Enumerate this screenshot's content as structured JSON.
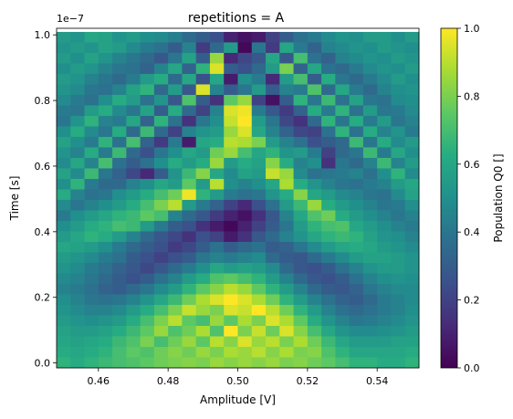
{
  "chart_data": {
    "type": "heatmap",
    "title": "repetitions = A",
    "xlabel": "Amplitude [V]",
    "ylabel": "Time [s]",
    "y_offset_label": "1e−7",
    "colorbar_label": "Population Q0 []",
    "colormap": "viridis",
    "x_range": [
      0.448,
      0.552
    ],
    "y_range": [
      -1.5e-09,
      1.02e-07
    ],
    "xticks": [
      0.46,
      0.48,
      0.5,
      0.52,
      0.54
    ],
    "xtick_labels": [
      "0.46",
      "0.48",
      "0.50",
      "0.52",
      "0.54"
    ],
    "yticks": [
      0.0,
      2e-08,
      4e-08,
      6e-08,
      8e-08,
      1e-07
    ],
    "ytick_labels": [
      "0.0",
      "0.2",
      "0.4",
      "0.6",
      "0.8",
      "1.0"
    ],
    "colorbar_ticks": [
      0.0,
      0.2,
      0.4,
      0.6,
      0.8,
      1.0
    ],
    "colorbar_tick_labels": [
      "0.0",
      "0.2",
      "0.4",
      "0.6",
      "0.8",
      "1.0"
    ],
    "value_range": [
      0.0,
      1.0
    ],
    "grid": {
      "x_start": 0.448,
      "x_step": 0.004,
      "x_count": 26,
      "y_start": -1.5e-09,
      "y_step": 3.2e-09,
      "y_count": 32
    },
    "note_values": "rows listed from top (highest time) to bottom (time 0); values are the Q0 population in each cell",
    "values": [
      [
        0.55,
        0.52,
        0.6,
        0.58,
        0.52,
        0.55,
        0.5,
        0.48,
        0.43,
        0.35,
        0.3,
        0.25,
        0.1,
        0.05,
        0.08,
        0.2,
        0.3,
        0.38,
        0.42,
        0.48,
        0.52,
        0.5,
        0.55,
        0.55,
        0.5,
        0.55
      ],
      [
        0.52,
        0.55,
        0.52,
        0.58,
        0.55,
        0.48,
        0.42,
        0.38,
        0.3,
        0.45,
        0.18,
        0.35,
        0.55,
        0.02,
        0.4,
        0.18,
        0.6,
        0.42,
        0.32,
        0.45,
        0.48,
        0.52,
        0.5,
        0.55,
        0.52,
        0.5
      ],
      [
        0.55,
        0.5,
        0.58,
        0.52,
        0.45,
        0.4,
        0.35,
        0.28,
        0.4,
        0.58,
        0.3,
        0.85,
        0.12,
        0.22,
        0.28,
        0.6,
        0.28,
        0.7,
        0.38,
        0.32,
        0.45,
        0.48,
        0.52,
        0.5,
        0.55,
        0.52
      ],
      [
        0.5,
        0.55,
        0.52,
        0.45,
        0.4,
        0.38,
        0.32,
        0.45,
        0.6,
        0.32,
        0.65,
        0.95,
        0.3,
        0.25,
        0.35,
        0.55,
        0.8,
        0.32,
        0.6,
        0.38,
        0.35,
        0.42,
        0.48,
        0.52,
        0.5,
        0.55
      ],
      [
        0.55,
        0.52,
        0.45,
        0.4,
        0.35,
        0.42,
        0.55,
        0.62,
        0.35,
        0.6,
        0.25,
        0.6,
        0.08,
        0.5,
        0.42,
        0.12,
        0.55,
        0.7,
        0.3,
        0.62,
        0.4,
        0.35,
        0.42,
        0.48,
        0.55,
        0.5
      ],
      [
        0.52,
        0.48,
        0.4,
        0.38,
        0.45,
        0.58,
        0.65,
        0.35,
        0.55,
        0.28,
        0.95,
        0.45,
        0.3,
        0.4,
        0.55,
        0.3,
        0.45,
        0.42,
        0.72,
        0.35,
        0.6,
        0.42,
        0.35,
        0.45,
        0.5,
        0.52
      ],
      [
        0.48,
        0.42,
        0.38,
        0.5,
        0.62,
        0.55,
        0.38,
        0.52,
        0.28,
        0.72,
        0.3,
        0.15,
        0.75,
        0.85,
        0.2,
        0.05,
        0.3,
        0.65,
        0.4,
        0.68,
        0.38,
        0.58,
        0.4,
        0.38,
        0.48,
        0.5
      ],
      [
        0.42,
        0.4,
        0.55,
        0.62,
        0.48,
        0.4,
        0.58,
        0.3,
        0.62,
        0.35,
        0.2,
        0.45,
        0.95,
        0.98,
        0.42,
        0.28,
        0.18,
        0.32,
        0.62,
        0.42,
        0.65,
        0.38,
        0.55,
        0.4,
        0.42,
        0.48
      ],
      [
        0.4,
        0.52,
        0.65,
        0.45,
        0.42,
        0.6,
        0.32,
        0.65,
        0.38,
        0.15,
        0.4,
        0.5,
        0.92,
        1.0,
        0.55,
        0.4,
        0.22,
        0.15,
        0.35,
        0.65,
        0.4,
        0.62,
        0.42,
        0.55,
        0.4,
        0.45
      ],
      [
        0.5,
        0.62,
        0.48,
        0.4,
        0.62,
        0.35,
        0.68,
        0.35,
        0.2,
        0.45,
        0.52,
        0.55,
        0.85,
        0.95,
        0.6,
        0.45,
        0.32,
        0.22,
        0.2,
        0.38,
        0.65,
        0.38,
        0.62,
        0.45,
        0.52,
        0.42
      ],
      [
        0.58,
        0.5,
        0.42,
        0.65,
        0.38,
        0.7,
        0.32,
        0.18,
        0.42,
        0.08,
        0.6,
        0.62,
        0.9,
        0.88,
        0.8,
        0.55,
        0.45,
        0.38,
        0.25,
        0.3,
        0.35,
        0.68,
        0.4,
        0.62,
        0.48,
        0.55
      ],
      [
        0.52,
        0.45,
        0.62,
        0.42,
        0.68,
        0.35,
        0.25,
        0.4,
        0.5,
        0.6,
        0.55,
        0.78,
        0.85,
        0.7,
        0.6,
        0.65,
        0.52,
        0.55,
        0.42,
        0.2,
        0.35,
        0.4,
        0.68,
        0.42,
        0.6,
        0.5
      ],
      [
        0.48,
        0.6,
        0.45,
        0.7,
        0.38,
        0.3,
        0.38,
        0.5,
        0.62,
        0.55,
        0.62,
        0.85,
        0.55,
        0.62,
        0.58,
        0.82,
        0.62,
        0.45,
        0.5,
        0.15,
        0.4,
        0.35,
        0.45,
        0.68,
        0.45,
        0.55
      ],
      [
        0.58,
        0.48,
        0.68,
        0.4,
        0.32,
        0.22,
        0.12,
        0.3,
        0.52,
        0.68,
        0.82,
        0.6,
        0.48,
        0.58,
        0.55,
        0.92,
        0.85,
        0.48,
        0.38,
        0.4,
        0.42,
        0.45,
        0.38,
        0.5,
        0.65,
        0.48
      ],
      [
        0.5,
        0.65,
        0.42,
        0.35,
        0.35,
        0.45,
        0.5,
        0.6,
        0.55,
        0.75,
        0.55,
        0.9,
        0.5,
        0.45,
        0.5,
        0.6,
        0.88,
        0.62,
        0.52,
        0.45,
        0.4,
        0.38,
        0.42,
        0.45,
        0.55,
        0.6
      ],
      [
        0.62,
        0.45,
        0.38,
        0.4,
        0.5,
        0.55,
        0.62,
        0.7,
        0.78,
        0.98,
        0.65,
        0.55,
        0.42,
        0.38,
        0.4,
        0.52,
        0.62,
        0.82,
        0.6,
        0.55,
        0.48,
        0.45,
        0.4,
        0.38,
        0.48,
        0.58
      ],
      [
        0.48,
        0.4,
        0.45,
        0.5,
        0.55,
        0.62,
        0.7,
        0.8,
        0.9,
        0.55,
        0.42,
        0.32,
        0.2,
        0.12,
        0.25,
        0.38,
        0.55,
        0.68,
        0.85,
        0.62,
        0.55,
        0.5,
        0.45,
        0.4,
        0.42,
        0.5
      ],
      [
        0.42,
        0.5,
        0.55,
        0.6,
        0.65,
        0.68,
        0.75,
        0.7,
        0.45,
        0.35,
        0.28,
        0.18,
        0.1,
        0.05,
        0.15,
        0.28,
        0.45,
        0.6,
        0.72,
        0.78,
        0.62,
        0.55,
        0.5,
        0.45,
        0.4,
        0.45
      ],
      [
        0.5,
        0.55,
        0.62,
        0.65,
        0.7,
        0.68,
        0.55,
        0.42,
        0.3,
        0.25,
        0.15,
        0.08,
        0.02,
        0.1,
        0.2,
        0.3,
        0.4,
        0.55,
        0.65,
        0.7,
        0.72,
        0.6,
        0.55,
        0.5,
        0.45,
        0.42
      ],
      [
        0.55,
        0.6,
        0.65,
        0.62,
        0.55,
        0.45,
        0.35,
        0.28,
        0.22,
        0.15,
        0.25,
        0.2,
        0.08,
        0.15,
        0.28,
        0.35,
        0.45,
        0.52,
        0.6,
        0.65,
        0.68,
        0.65,
        0.58,
        0.52,
        0.5,
        0.45
      ],
      [
        0.6,
        0.58,
        0.55,
        0.5,
        0.42,
        0.35,
        0.3,
        0.25,
        0.18,
        0.22,
        0.3,
        0.38,
        0.3,
        0.35,
        0.38,
        0.3,
        0.32,
        0.4,
        0.48,
        0.55,
        0.6,
        0.62,
        0.6,
        0.55,
        0.52,
        0.48
      ],
      [
        0.55,
        0.52,
        0.48,
        0.42,
        0.38,
        0.3,
        0.25,
        0.2,
        0.25,
        0.3,
        0.4,
        0.45,
        0.42,
        0.45,
        0.48,
        0.35,
        0.3,
        0.28,
        0.35,
        0.42,
        0.48,
        0.55,
        0.58,
        0.58,
        0.55,
        0.52
      ],
      [
        0.52,
        0.48,
        0.42,
        0.38,
        0.32,
        0.28,
        0.22,
        0.28,
        0.35,
        0.42,
        0.5,
        0.6,
        0.55,
        0.58,
        0.55,
        0.48,
        0.35,
        0.28,
        0.25,
        0.3,
        0.38,
        0.45,
        0.52,
        0.55,
        0.55,
        0.52
      ],
      [
        0.48,
        0.45,
        0.4,
        0.35,
        0.3,
        0.25,
        0.3,
        0.38,
        0.45,
        0.55,
        0.62,
        0.72,
        0.75,
        0.7,
        0.65,
        0.55,
        0.45,
        0.35,
        0.28,
        0.25,
        0.3,
        0.38,
        0.45,
        0.5,
        0.52,
        0.5
      ],
      [
        0.45,
        0.42,
        0.38,
        0.32,
        0.3,
        0.35,
        0.4,
        0.48,
        0.55,
        0.65,
        0.75,
        0.82,
        0.9,
        0.85,
        0.75,
        0.65,
        0.55,
        0.45,
        0.35,
        0.3,
        0.28,
        0.32,
        0.4,
        0.45,
        0.48,
        0.48
      ],
      [
        0.5,
        0.45,
        0.4,
        0.38,
        0.4,
        0.45,
        0.52,
        0.6,
        0.68,
        0.78,
        0.88,
        0.95,
        1.0,
        0.95,
        0.88,
        0.78,
        0.65,
        0.55,
        0.45,
        0.38,
        0.32,
        0.3,
        0.35,
        0.42,
        0.45,
        0.48
      ],
      [
        0.52,
        0.48,
        0.45,
        0.45,
        0.48,
        0.55,
        0.62,
        0.7,
        0.8,
        0.92,
        0.85,
        0.8,
        0.95,
        0.92,
        1.0,
        0.9,
        0.78,
        0.65,
        0.55,
        0.45,
        0.38,
        0.35,
        0.38,
        0.42,
        0.45,
        0.5
      ],
      [
        0.55,
        0.52,
        0.5,
        0.52,
        0.55,
        0.62,
        0.7,
        0.8,
        0.9,
        0.75,
        0.7,
        0.85,
        0.75,
        0.88,
        0.8,
        0.95,
        0.88,
        0.75,
        0.62,
        0.52,
        0.45,
        0.4,
        0.42,
        0.45,
        0.48,
        0.52
      ],
      [
        0.58,
        0.55,
        0.55,
        0.58,
        0.62,
        0.68,
        0.75,
        0.85,
        0.72,
        0.78,
        0.88,
        0.72,
        1.0,
        0.8,
        0.92,
        0.78,
        0.95,
        0.82,
        0.7,
        0.6,
        0.52,
        0.48,
        0.48,
        0.5,
        0.52,
        0.55
      ],
      [
        0.6,
        0.58,
        0.6,
        0.62,
        0.68,
        0.72,
        0.8,
        0.7,
        0.78,
        0.85,
        0.75,
        0.9,
        0.82,
        0.95,
        0.85,
        0.9,
        0.8,
        0.88,
        0.78,
        0.68,
        0.6,
        0.55,
        0.55,
        0.55,
        0.58,
        0.58
      ],
      [
        0.62,
        0.6,
        0.62,
        0.65,
        0.7,
        0.75,
        0.72,
        0.78,
        0.82,
        0.78,
        0.85,
        0.8,
        0.88,
        0.85,
        0.9,
        0.82,
        0.88,
        0.8,
        0.82,
        0.72,
        0.65,
        0.6,
        0.6,
        0.6,
        0.6,
        0.62
      ],
      [
        0.65,
        0.62,
        0.65,
        0.68,
        0.7,
        0.72,
        0.75,
        0.78,
        0.8,
        0.82,
        0.8,
        0.85,
        0.82,
        0.85,
        0.82,
        0.85,
        0.8,
        0.82,
        0.78,
        0.75,
        0.7,
        0.65,
        0.65,
        0.62,
        0.62,
        0.65
      ]
    ]
  }
}
